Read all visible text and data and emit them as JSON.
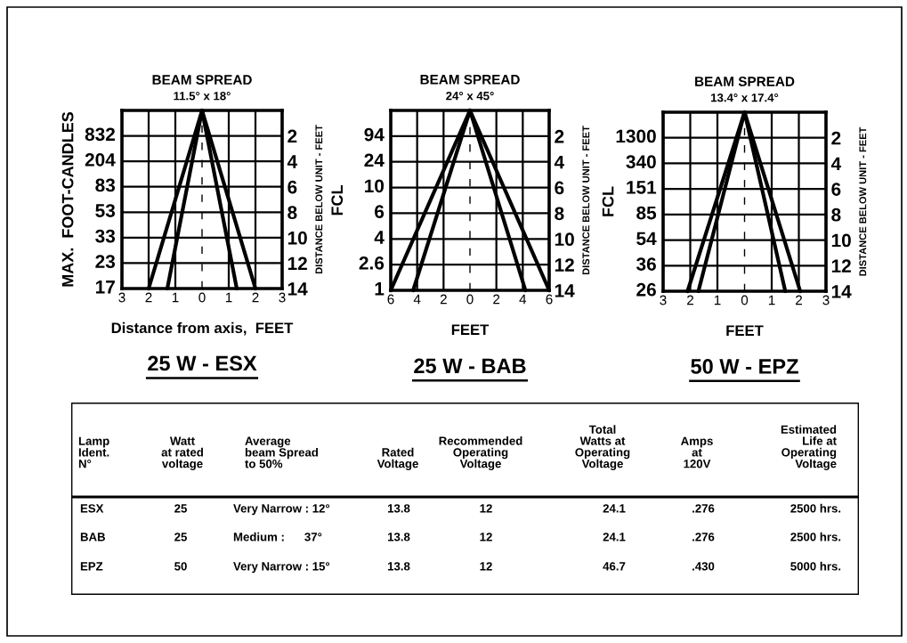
{
  "chart_data": [
    {
      "type": "line",
      "title": "BEAM SPREAD",
      "subtitle": "11.5° x 18°",
      "xlabel": "Distance from axis,  FEET",
      "ylabel": "DISTANCE BELOW UNIT - FEET",
      "grid": true,
      "xlim": [
        -3,
        3
      ],
      "xticks": [
        {
          "value": -3,
          "label": "3"
        },
        {
          "value": -2,
          "label": "2"
        },
        {
          "value": -1,
          "label": "1"
        },
        {
          "value": 0,
          "label": "0"
        },
        {
          "value": 1,
          "label": "1"
        },
        {
          "value": 2,
          "label": "2"
        },
        {
          "value": 3,
          "label": "3"
        }
      ],
      "ylim": [
        14,
        0
      ],
      "yticks": [
        2,
        4,
        6,
        8,
        10,
        12,
        14
      ],
      "annotations": [
        "832",
        "204",
        "83",
        "53",
        "33",
        "23",
        "17",
        "MAX.  FOOT-CANDLES",
        "25 W - ESX"
      ],
      "series": [
        {
          "color": "#000000",
          "x": [
            -2.0,
            0,
            2.0
          ],
          "values": [
            14,
            0,
            14
          ]
        },
        {
          "color": "#000000",
          "x": [
            -1.3,
            0,
            1.3
          ],
          "values": [
            14,
            0,
            14
          ]
        }
      ],
      "ref_lines": [
        {
          "axis": "x",
          "value": 0,
          "line_style": "dashed",
          "color": "#000000"
        }
      ]
    },
    {
      "type": "line",
      "title": "BEAM SPREAD",
      "subtitle": "24° x 45°",
      "xlabel": "FEET",
      "ylabel": "DISTANCE BELOW UNIT - FEET",
      "grid": true,
      "xlim": [
        -6,
        6
      ],
      "xticks": [
        {
          "value": -6,
          "label": "6"
        },
        {
          "value": -4,
          "label": "4"
        },
        {
          "value": -2,
          "label": "2"
        },
        {
          "value": 0,
          "label": "0"
        },
        {
          "value": 2,
          "label": "2"
        },
        {
          "value": 4,
          "label": "4"
        },
        {
          "value": 6,
          "label": "6"
        }
      ],
      "ylim": [
        14,
        0
      ],
      "yticks": [
        2,
        4,
        6,
        8,
        10,
        12,
        14
      ],
      "annotations": [
        "94",
        "24",
        "10",
        "6",
        "4",
        "2.6",
        "1",
        "FCL",
        "25 W - BAB"
      ],
      "series": [
        {
          "color": "#000000",
          "x": [
            -6,
            0,
            6
          ],
          "values": [
            14,
            0,
            14
          ]
        },
        {
          "color": "#000000",
          "x": [
            -4.3,
            0,
            4.2
          ],
          "values": [
            14,
            0,
            14
          ]
        }
      ],
      "ref_lines": [
        {
          "axis": "x",
          "value": 0,
          "line_style": "dashed",
          "color": "#000000"
        }
      ]
    },
    {
      "type": "line",
      "title": "BEAM SPREAD",
      "subtitle": "13.4° x 17.4°",
      "xlabel": "FEET",
      "ylabel": "DISTANCE BELOW UNIT - FEET",
      "grid": true,
      "xlim": [
        -3,
        3
      ],
      "xticks": [
        {
          "value": -3,
          "label": "3"
        },
        {
          "value": -2,
          "label": "2"
        },
        {
          "value": -1,
          "label": "1"
        },
        {
          "value": 0,
          "label": "0"
        },
        {
          "value": 1,
          "label": "1"
        },
        {
          "value": 2,
          "label": "2"
        },
        {
          "value": 3,
          "label": "3"
        }
      ],
      "ylim": [
        14,
        0
      ],
      "yticks": [
        2,
        4,
        6,
        8,
        10,
        12,
        14
      ],
      "annotations": [
        "1300",
        "340",
        "151",
        "85",
        "54",
        "36",
        "26",
        "FCL",
        "50 W - EPZ"
      ],
      "series": [
        {
          "color": "#000000",
          "x": [
            -2.1,
            0,
            2.05
          ],
          "values": [
            14,
            0,
            14
          ]
        },
        {
          "color": "#000000",
          "x": [
            -1.7,
            0,
            1.5
          ],
          "values": [
            14,
            0,
            14
          ]
        }
      ],
      "ref_lines": [
        {
          "axis": "x",
          "value": 0,
          "line_style": "dashed",
          "color": "#000000"
        }
      ]
    },
    {
      "type": "other",
      "categories": [
        "Lamp\nIdent.\nN°",
        "Watt\nat rated\nvoltage",
        "Average\nbeam Spread\nto 50%",
        "Rated\nVoltage",
        "Recommended\nOperating\nVoltage",
        "Total\nWatts at\nOperating\nVoltage",
        "Amps\nat\n120V",
        "Estimated\nLife at\nOperating\nVoltage"
      ],
      "annotations": [
        "ESX",
        "25",
        "Very Narrow : 12°",
        "13.8",
        "12",
        "24.1",
        ".276",
        "2500 hrs.",
        "BAB",
        "25",
        "Medium :      37°",
        "13.8",
        "12",
        "24.1",
        ".276",
        "2500 hrs.",
        "EPZ",
        "50",
        "Very Narrow : 15°",
        "13.8",
        "12",
        "46.7",
        ".430",
        "5000 hrs."
      ]
    }
  ]
}
